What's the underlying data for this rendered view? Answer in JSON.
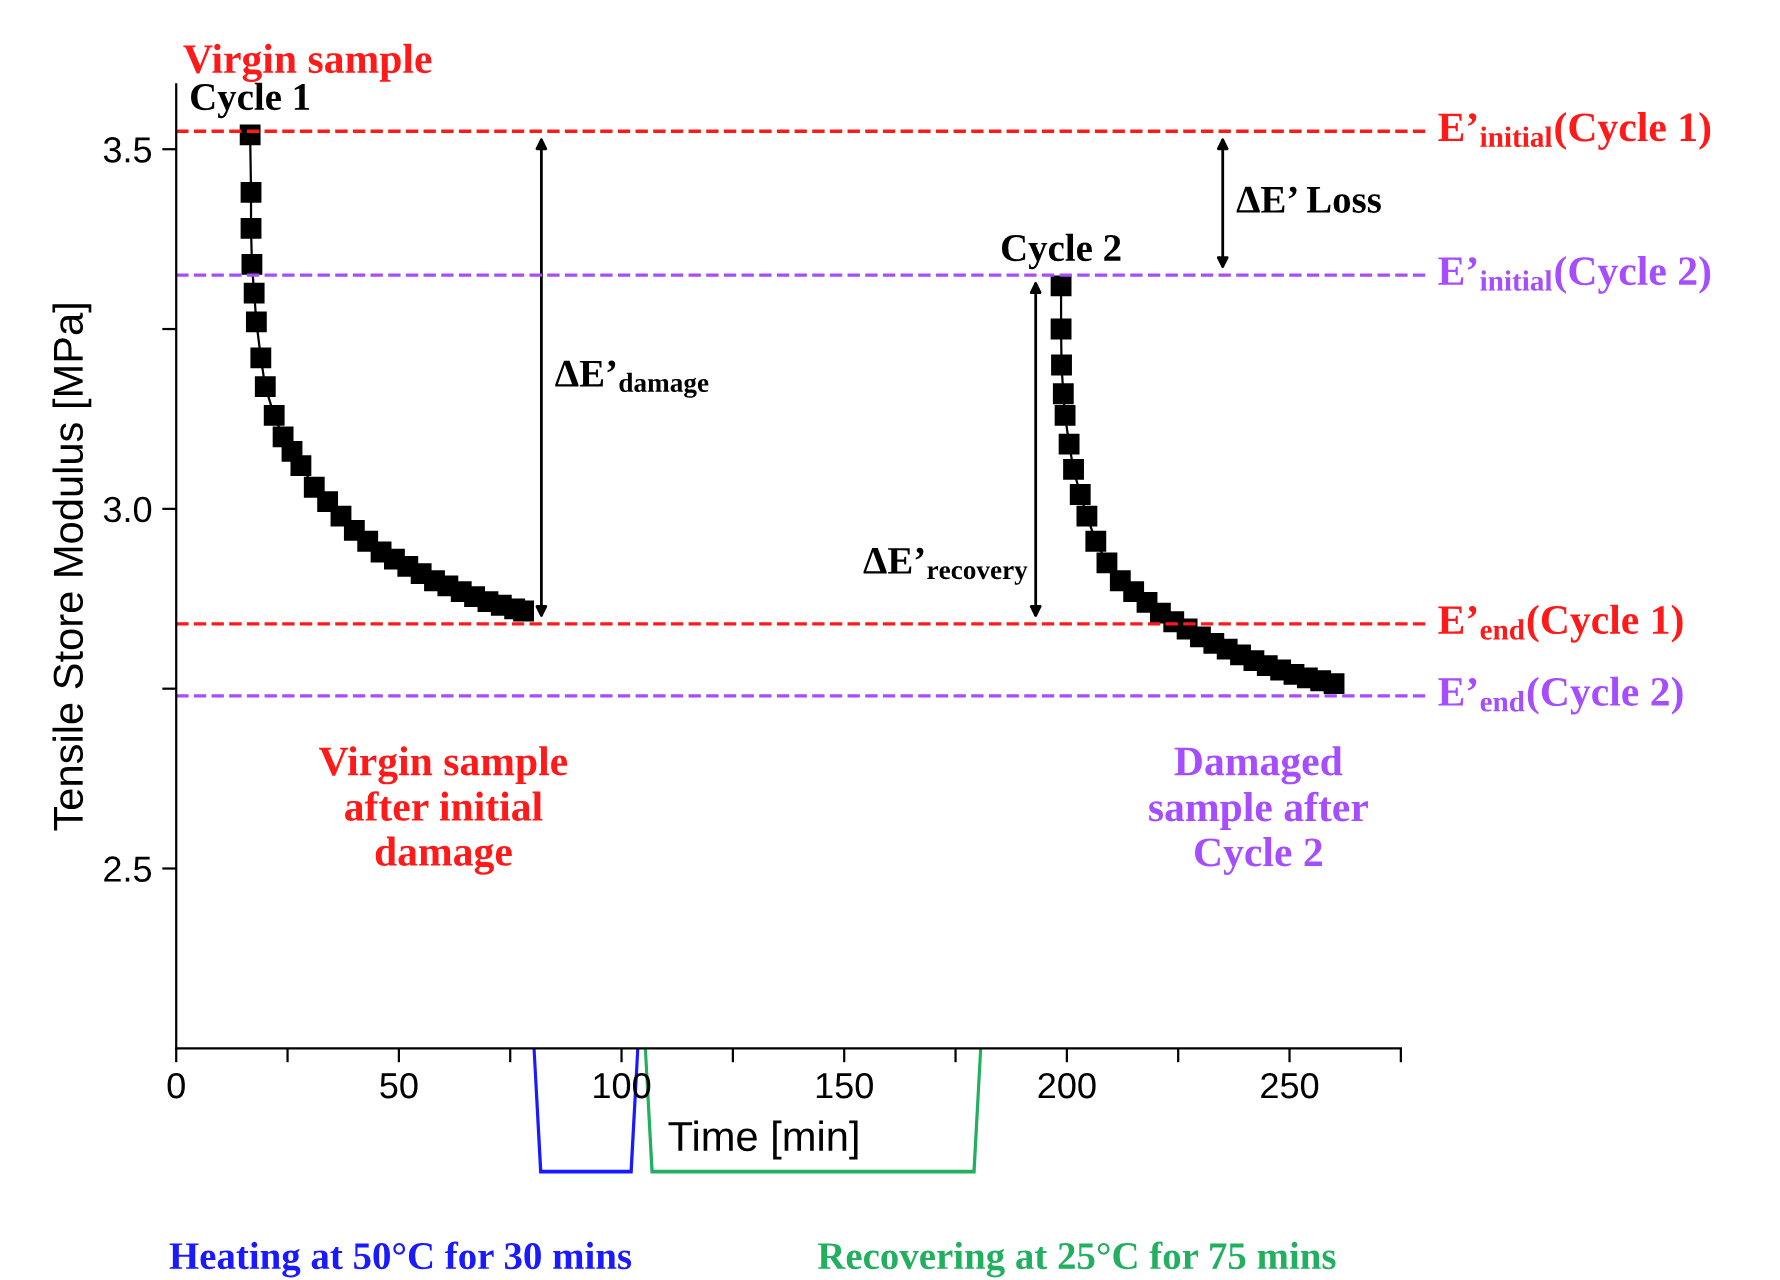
{
  "chart_data": {
    "type": "line",
    "xlabel": "Time [min]",
    "ylabel": "Tensile Store Modulus [MPa]",
    "xlim": [
      0,
      275
    ],
    "ylim": [
      2.25,
      3.59
    ],
    "xticks": [
      0,
      {
        "value": 25,
        "label": null
      },
      50,
      {
        "value": 75,
        "label": null
      },
      100,
      {
        "value": 125,
        "label": null
      },
      150,
      {
        "value": 175,
        "label": null
      },
      200,
      {
        "value": 225,
        "label": null
      },
      250,
      {
        "value": 275,
        "label": null
      }
    ],
    "yticks": [
      2.5,
      {
        "value": 2.75,
        "label": null
      },
      {
        "value": 3.0,
        "label": "3.0"
      },
      {
        "value": 3.25,
        "label": null
      },
      3.5
    ],
    "grid": false,
    "legend": false,
    "marker": "square",
    "line_style": "solid",
    "series": [
      {
        "name": "Cycle 1",
        "color": "#000000",
        "x": [
          16.6,
          16.8,
          16.8,
          17.0,
          17.5,
          18,
          19,
          20,
          22,
          24,
          26,
          28,
          31,
          34,
          37,
          40,
          43,
          46,
          49,
          52,
          55,
          58,
          61,
          64,
          67,
          70,
          73,
          76,
          78
        ],
        "values": [
          3.52,
          3.44,
          3.39,
          3.34,
          3.3,
          3.26,
          3.21,
          3.17,
          3.13,
          3.1,
          3.08,
          3.06,
          3.03,
          3.01,
          2.99,
          2.97,
          2.955,
          2.94,
          2.93,
          2.92,
          2.91,
          2.9,
          2.893,
          2.885,
          2.878,
          2.871,
          2.866,
          2.861,
          2.858
        ]
      },
      {
        "name": "Cycle 2",
        "color": "#000000",
        "x": [
          198.7,
          198.7,
          198.8,
          199.2,
          199.6,
          200.5,
          201.5,
          203,
          204.5,
          206.5,
          209,
          212,
          215,
          218,
          221,
          224,
          227,
          230,
          233,
          236,
          239,
          242,
          245,
          248,
          251,
          254,
          257,
          260
        ],
        "values": [
          3.31,
          3.25,
          3.2,
          3.16,
          3.13,
          3.09,
          3.055,
          3.02,
          2.99,
          2.955,
          2.925,
          2.9,
          2.885,
          2.87,
          2.855,
          2.843,
          2.833,
          2.822,
          2.813,
          2.805,
          2.797,
          2.789,
          2.782,
          2.776,
          2.77,
          2.765,
          2.761,
          2.757
        ]
      }
    ],
    "ref_lines": [
      {
        "axis": "y",
        "value": 3.525,
        "label": "E’$_{initial}$(Cycle 1)",
        "color": "#ff1a1a",
        "line_style": "dashed"
      },
      {
        "axis": "y",
        "value": 3.325,
        "label": "E’$_{initial}$(Cycle 2)",
        "color": "#a64dff",
        "line_style": "dashed"
      },
      {
        "axis": "y",
        "value": 2.84,
        "label": "E’$_{end}$(Cycle 1)",
        "color": "#ff1a1a",
        "line_style": "dashed"
      },
      {
        "axis": "y",
        "value": 2.74,
        "label": "E’$_{end}$(Cycle 2)",
        "color": "#a64dff",
        "line_style": "dashed"
      }
    ],
    "annotations": [
      "ΔE’$_{damage}$",
      "ΔE’$_{recovery}$",
      "ΔE’ Loss",
      "Virgin sample",
      "Virgin sample\nafter initial\ndamage",
      "Damaged\nsample after\nCycle 2",
      "Heating at 50°C for 30 mins",
      "Recovering at 25°C for 75 mins"
    ]
  }
}
